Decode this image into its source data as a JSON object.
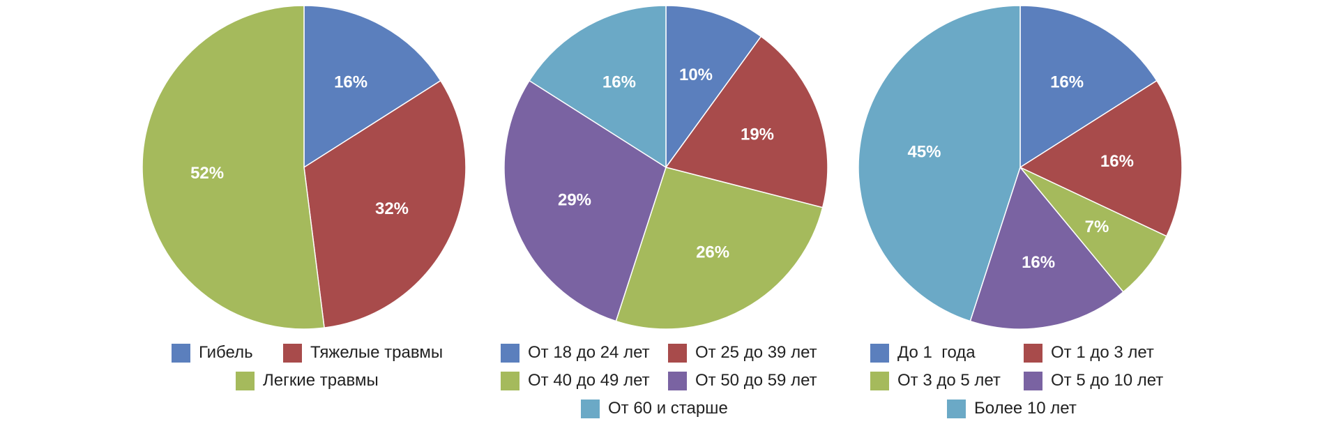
{
  "colors": {
    "blue": "#5b7fbd",
    "red": "#a84b4b",
    "green": "#a5ba5c",
    "purple": "#7a63a2",
    "teal": "#6ba9c6"
  },
  "chart_data": [
    {
      "type": "pie",
      "slices": [
        {
          "label": "Гибель",
          "value": 16,
          "value_label": "16%",
          "color": "#5b7fbd"
        },
        {
          "label": "Тяжелые травмы",
          "value": 32,
          "value_label": "32%",
          "color": "#a84b4b"
        },
        {
          "label": "Легкие травмы",
          "value": 52,
          "value_label": "52%",
          "color": "#a5ba5c"
        }
      ]
    },
    {
      "type": "pie",
      "slices": [
        {
          "label": "От 18 до 24 лет",
          "value": 10,
          "value_label": "10%",
          "color": "#5b7fbd"
        },
        {
          "label": "От 25 до 39 лет",
          "value": 19,
          "value_label": "19%",
          "color": "#a84b4b"
        },
        {
          "label": "От 40 до 49 лет",
          "value": 26,
          "value_label": "26%",
          "color": "#a5ba5c"
        },
        {
          "label": "От 50 до 59 лет",
          "value": 29,
          "value_label": "29%",
          "color": "#7a63a2"
        },
        {
          "label": "От 60 и старше",
          "value": 16,
          "value_label": "16%",
          "color": "#6ba9c6"
        }
      ]
    },
    {
      "type": "pie",
      "slices": [
        {
          "label": "До 1  года",
          "value": 16,
          "value_label": "16%",
          "color": "#5b7fbd"
        },
        {
          "label": "От 1 до 3 лет",
          "value": 16,
          "value_label": "16%",
          "color": "#a84b4b"
        },
        {
          "label": "От 3 до 5 лет",
          "value": 7,
          "value_label": "7%",
          "color": "#a5ba5c"
        },
        {
          "label": "От 5 до 10 лет",
          "value": 16,
          "value_label": "16%",
          "color": "#7a63a2"
        },
        {
          "label": "Более 10 лет",
          "value": 45,
          "value_label": "45%",
          "color": "#6ba9c6"
        }
      ]
    }
  ]
}
